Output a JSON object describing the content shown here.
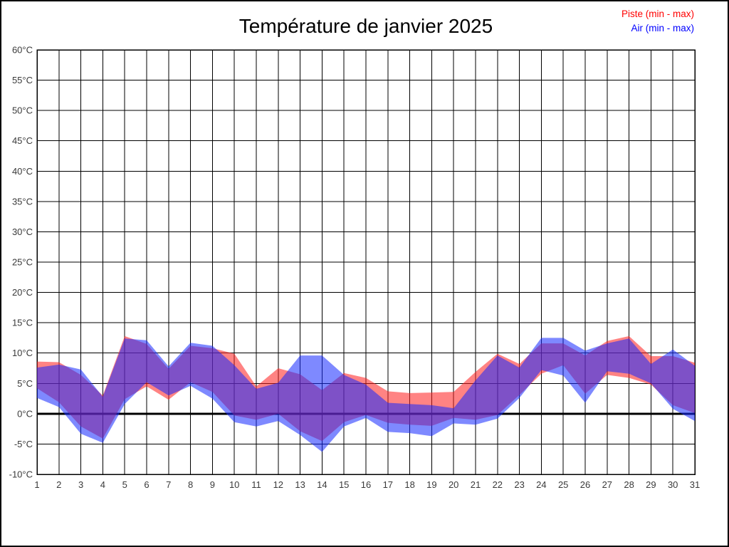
{
  "title": "Température de janvier 2025",
  "legend": {
    "piste_label": "Piste (min - max)",
    "air_label": "Air (min - max)",
    "piste_color": "#ff0000",
    "air_color": "#0000ff",
    "position": "top-right"
  },
  "colors": {
    "piste_band_fill": "rgba(255,30,30,0.55)",
    "air_band_fill": "rgba(20,40,255,0.55)",
    "grid": "#000000",
    "axis_text": "#3a3a3a",
    "title_text": "#000000",
    "background": "#ffffff"
  },
  "chart_data": {
    "type": "area",
    "title": "Température de janvier 2025",
    "xlabel": "",
    "ylabel": "°C",
    "x": [
      1,
      2,
      3,
      4,
      5,
      6,
      7,
      8,
      9,
      10,
      11,
      12,
      13,
      14,
      15,
      16,
      17,
      18,
      19,
      20,
      21,
      22,
      23,
      24,
      25,
      26,
      27,
      28,
      29,
      30,
      31
    ],
    "x_tick_labels": [
      "1",
      "2",
      "3",
      "4",
      "5",
      "6",
      "7",
      "8",
      "9",
      "10",
      "11",
      "12",
      "13",
      "14",
      "15",
      "16",
      "17",
      "18",
      "19",
      "20",
      "21",
      "22",
      "23",
      "24",
      "25",
      "26",
      "27",
      "28",
      "29",
      "30",
      "31"
    ],
    "ylim": [
      -10,
      60
    ],
    "y_tick_step": 5,
    "y_ticks": [
      60,
      55,
      50,
      45,
      40,
      35,
      30,
      25,
      20,
      15,
      10,
      5,
      0,
      -5,
      -10
    ],
    "y_tick_suffix": "°C",
    "grid": true,
    "zero_line_bold": true,
    "legend_position": "top-right",
    "series": [
      {
        "name": "Piste (min - max)",
        "band": true,
        "max": [
          8.6,
          8.5,
          6.4,
          3.0,
          12.8,
          11.5,
          7.4,
          11.2,
          10.8,
          9.9,
          4.5,
          7.5,
          6.5,
          3.9,
          6.7,
          5.9,
          3.7,
          3.4,
          3.5,
          3.6,
          6.9,
          9.9,
          8.2,
          11.6,
          11.6,
          9.6,
          12.0,
          12.8,
          9.5,
          9.5,
          8.4
        ],
        "min": [
          4.2,
          1.9,
          -2.1,
          -4.1,
          2.4,
          4.5,
          2.3,
          5.2,
          3.6,
          -0.3,
          -1.0,
          0.0,
          -2.9,
          -4.5,
          -1.4,
          -0.2,
          -1.5,
          -1.8,
          -2.0,
          -0.7,
          -1.0,
          -0.2,
          3.1,
          6.6,
          8.0,
          3.3,
          6.4,
          5.9,
          4.8,
          1.4,
          0.1
        ]
      },
      {
        "name": "Air (min - max)",
        "band": true,
        "max": [
          7.6,
          8.1,
          7.3,
          2.8,
          12.4,
          12.1,
          7.8,
          11.7,
          11.2,
          8.0,
          4.1,
          5.1,
          9.6,
          9.6,
          6.4,
          4.8,
          1.8,
          1.6,
          1.4,
          0.9,
          5.5,
          9.6,
          7.6,
          12.5,
          12.5,
          10.4,
          11.6,
          12.4,
          8.2,
          10.6,
          7.9
        ],
        "min": [
          2.6,
          1.1,
          -3.3,
          -4.8,
          1.6,
          5.2,
          3.0,
          4.6,
          2.5,
          -1.4,
          -2.1,
          -1.2,
          -3.5,
          -6.3,
          -2.1,
          -0.7,
          -3.0,
          -3.2,
          -3.7,
          -1.6,
          -1.8,
          -0.8,
          2.6,
          7.2,
          6.3,
          1.8,
          7.0,
          6.6,
          5.0,
          0.8,
          -1.2
        ]
      }
    ]
  }
}
